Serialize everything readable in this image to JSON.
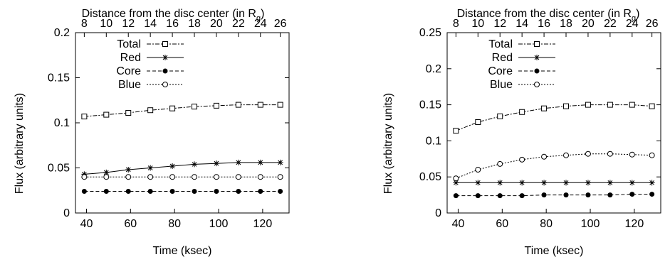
{
  "chart_data": [
    {
      "type": "line",
      "xlabel": "Time (ksec)",
      "ylabel": "Flux (arbitrary units)",
      "top_xlabel": "Distance from the disc center (in R",
      "top_xlabel_sub": "g",
      "top_xlabel_close": ")",
      "xlim": [
        35,
        132
      ],
      "ylim": [
        0,
        0.2
      ],
      "xticks": [
        40,
        60,
        80,
        100,
        120
      ],
      "xtick_labels": [
        "40",
        "60",
        "80",
        "100",
        "120"
      ],
      "yticks": [
        0,
        0.05,
        0.1,
        0.15,
        0.2
      ],
      "ytick_labels": [
        "0",
        "0.05",
        "0.1",
        "0.15",
        "0.2"
      ],
      "top_ticks": [
        8,
        10,
        12,
        14,
        16,
        18,
        20,
        22,
        24,
        26
      ],
      "top_tick_labels": [
        "8",
        "10",
        "12",
        "14",
        "16",
        "18",
        "20",
        "22",
        "24",
        "26"
      ],
      "legend_position": "top-left",
      "x": [
        39,
        49,
        59,
        69,
        79,
        89,
        99,
        109,
        119,
        128
      ],
      "series": [
        {
          "name": "Total",
          "style": "dashdot",
          "marker": "square",
          "values": [
            0.107,
            0.109,
            0.111,
            0.114,
            0.116,
            0.118,
            0.119,
            0.12,
            0.12,
            0.12
          ]
        },
        {
          "name": "Red",
          "style": "solid",
          "marker": "star",
          "values": [
            0.043,
            0.045,
            0.048,
            0.05,
            0.052,
            0.054,
            0.055,
            0.056,
            0.056,
            0.056
          ]
        },
        {
          "name": "Core",
          "style": "dashed",
          "marker": "filled-circle",
          "values": [
            0.024,
            0.024,
            0.024,
            0.024,
            0.024,
            0.024,
            0.024,
            0.024,
            0.024,
            0.024
          ]
        },
        {
          "name": "Blue",
          "style": "dotted",
          "marker": "open-circle",
          "values": [
            0.04,
            0.04,
            0.04,
            0.04,
            0.04,
            0.04,
            0.04,
            0.04,
            0.04,
            0.04
          ]
        }
      ]
    },
    {
      "type": "line",
      "xlabel": "Time (ksec)",
      "ylabel": "Flux (arbitrary units)",
      "top_xlabel": "Distance from the disc center (in R",
      "top_xlabel_sub": "g",
      "top_xlabel_close": ")",
      "xlim": [
        35,
        132
      ],
      "ylim": [
        0,
        0.25
      ],
      "xticks": [
        40,
        60,
        80,
        100,
        120
      ],
      "xtick_labels": [
        "40",
        "60",
        "80",
        "100",
        "120"
      ],
      "yticks": [
        0,
        0.05,
        0.1,
        0.15,
        0.2,
        0.25
      ],
      "ytick_labels": [
        "0",
        "0.05",
        "0.1",
        "0.15",
        "0.2",
        "0.25"
      ],
      "top_ticks": [
        8,
        10,
        12,
        14,
        16,
        18,
        20,
        22,
        24,
        26
      ],
      "top_tick_labels": [
        "8",
        "10",
        "12",
        "14",
        "16",
        "18",
        "20",
        "22",
        "24",
        "26"
      ],
      "legend_position": "top-left",
      "x": [
        39,
        49,
        59,
        69,
        79,
        89,
        99,
        109,
        119,
        128
      ],
      "series": [
        {
          "name": "Total",
          "style": "dashdot",
          "marker": "square",
          "values": [
            0.114,
            0.126,
            0.134,
            0.14,
            0.145,
            0.148,
            0.15,
            0.15,
            0.15,
            0.148
          ]
        },
        {
          "name": "Red",
          "style": "solid",
          "marker": "star",
          "values": [
            0.042,
            0.042,
            0.042,
            0.042,
            0.042,
            0.042,
            0.042,
            0.042,
            0.042,
            0.042
          ]
        },
        {
          "name": "Core",
          "style": "dashed",
          "marker": "filled-circle",
          "values": [
            0.024,
            0.024,
            0.024,
            0.024,
            0.025,
            0.025,
            0.025,
            0.025,
            0.026,
            0.026
          ]
        },
        {
          "name": "Blue",
          "style": "dotted",
          "marker": "open-circle",
          "values": [
            0.048,
            0.06,
            0.068,
            0.074,
            0.078,
            0.08,
            0.082,
            0.082,
            0.081,
            0.08
          ]
        }
      ]
    }
  ]
}
